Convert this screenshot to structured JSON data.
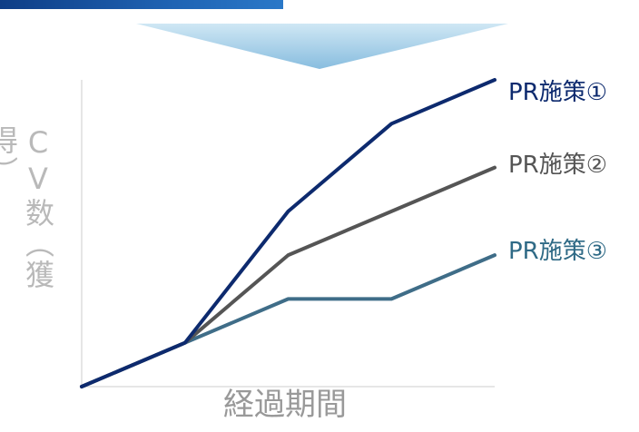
{
  "chart_data": {
    "type": "line",
    "title": "",
    "xlabel": "経過期間",
    "ylabel": "CV数（獲得）",
    "x": [
      0,
      1,
      2,
      3,
      4
    ],
    "ylim": [
      0,
      7
    ],
    "grid": false,
    "legend_placement": "right",
    "series": [
      {
        "name": "PR施策①",
        "color": "#0d2a6e",
        "values": [
          0,
          1,
          4,
          6,
          7
        ]
      },
      {
        "name": "PR施策②",
        "color": "#555555",
        "values": [
          0,
          1,
          3,
          4,
          5
        ]
      },
      {
        "name": "PR施策③",
        "color": "#3f6d88",
        "values": [
          0,
          1,
          2,
          2,
          3
        ]
      }
    ]
  },
  "colors": {
    "top_bar": "#1c5aa8",
    "arrow_top": "#8ec3e3",
    "arrow_bottom": "#c9e4f2",
    "axis": "#dddddd",
    "series1_label": "#0d2a6e",
    "series2_label": "#555555",
    "series3_label": "#2f6a86",
    "xlabel": "#999999",
    "ylabel": "#b9b9b9"
  }
}
